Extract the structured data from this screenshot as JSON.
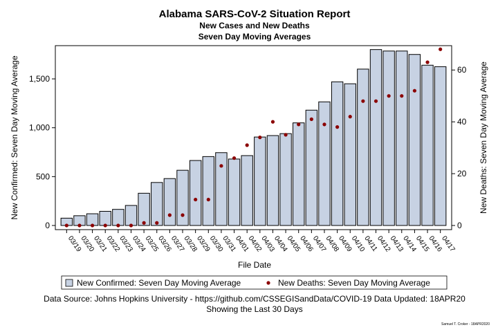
{
  "chart_data": {
    "type": "bar",
    "title": "Alabama SARS-CoV-2 Situation Report",
    "subtitle1": "New Cases and New Deaths",
    "subtitle2": "Seven Day Moving Averages",
    "xlabel": "File Date",
    "ylabel_left": "New Confirmed: Seven Day Moving Average",
    "ylabel_right": "New Deaths: Seven Day Moving Average",
    "categories": [
      "03/19",
      "03/20",
      "03/21",
      "03/22",
      "03/23",
      "03/24",
      "03/25",
      "03/26",
      "03/27",
      "03/28",
      "03/29",
      "03/30",
      "03/31",
      "04/01",
      "04/02",
      "04/03",
      "04/04",
      "04/05",
      "04/06",
      "04/07",
      "04/08",
      "04/09",
      "04/10",
      "04/11",
      "04/12",
      "04/13",
      "04/14",
      "04/15",
      "04/16",
      "04/17"
    ],
    "series": [
      {
        "name": "New Confirmed: Seven Day Moving Average",
        "axis": "left",
        "type": "bar",
        "values": [
          75,
          100,
          120,
          145,
          165,
          205,
          330,
          440,
          480,
          565,
          665,
          705,
          745,
          680,
          715,
          905,
          920,
          940,
          1050,
          1180,
          1265,
          1470,
          1450,
          1600,
          1800,
          1785,
          1785,
          1750,
          1640,
          1625
        ]
      },
      {
        "name": "New Deaths: Seven Day Moving Average",
        "axis": "right",
        "type": "scatter",
        "values": [
          0,
          0,
          0,
          0,
          0,
          0,
          1,
          1,
          4,
          4,
          10,
          10,
          23,
          26,
          31,
          34,
          40,
          35,
          39,
          41,
          39,
          38,
          42,
          48,
          48,
          50,
          50,
          52,
          63,
          68
        ]
      }
    ],
    "ylim_left": [
      0,
      1840
    ],
    "yticks_left": [
      0,
      500,
      1000,
      1500
    ],
    "yticks_left_labels": [
      "0",
      "500",
      "1,000",
      "1,500"
    ],
    "ylim_right": [
      0,
      69.4
    ],
    "yticks_right": [
      0,
      20,
      40,
      60
    ],
    "legend_placement": "bottom",
    "grid": false,
    "colors": {
      "bar_fill": "#c7d2e3",
      "bar_stroke": "#000000",
      "dot": "#8b0000"
    }
  },
  "footer": {
    "source": "Data Source: Johns Hopkins University - https://github.com/CSSEGISandData/COVID-19 Data Updated: 18APR20",
    "showing": "Showing the Last 30 Days",
    "author": "Samuel T. Croker - 18APR2020"
  }
}
